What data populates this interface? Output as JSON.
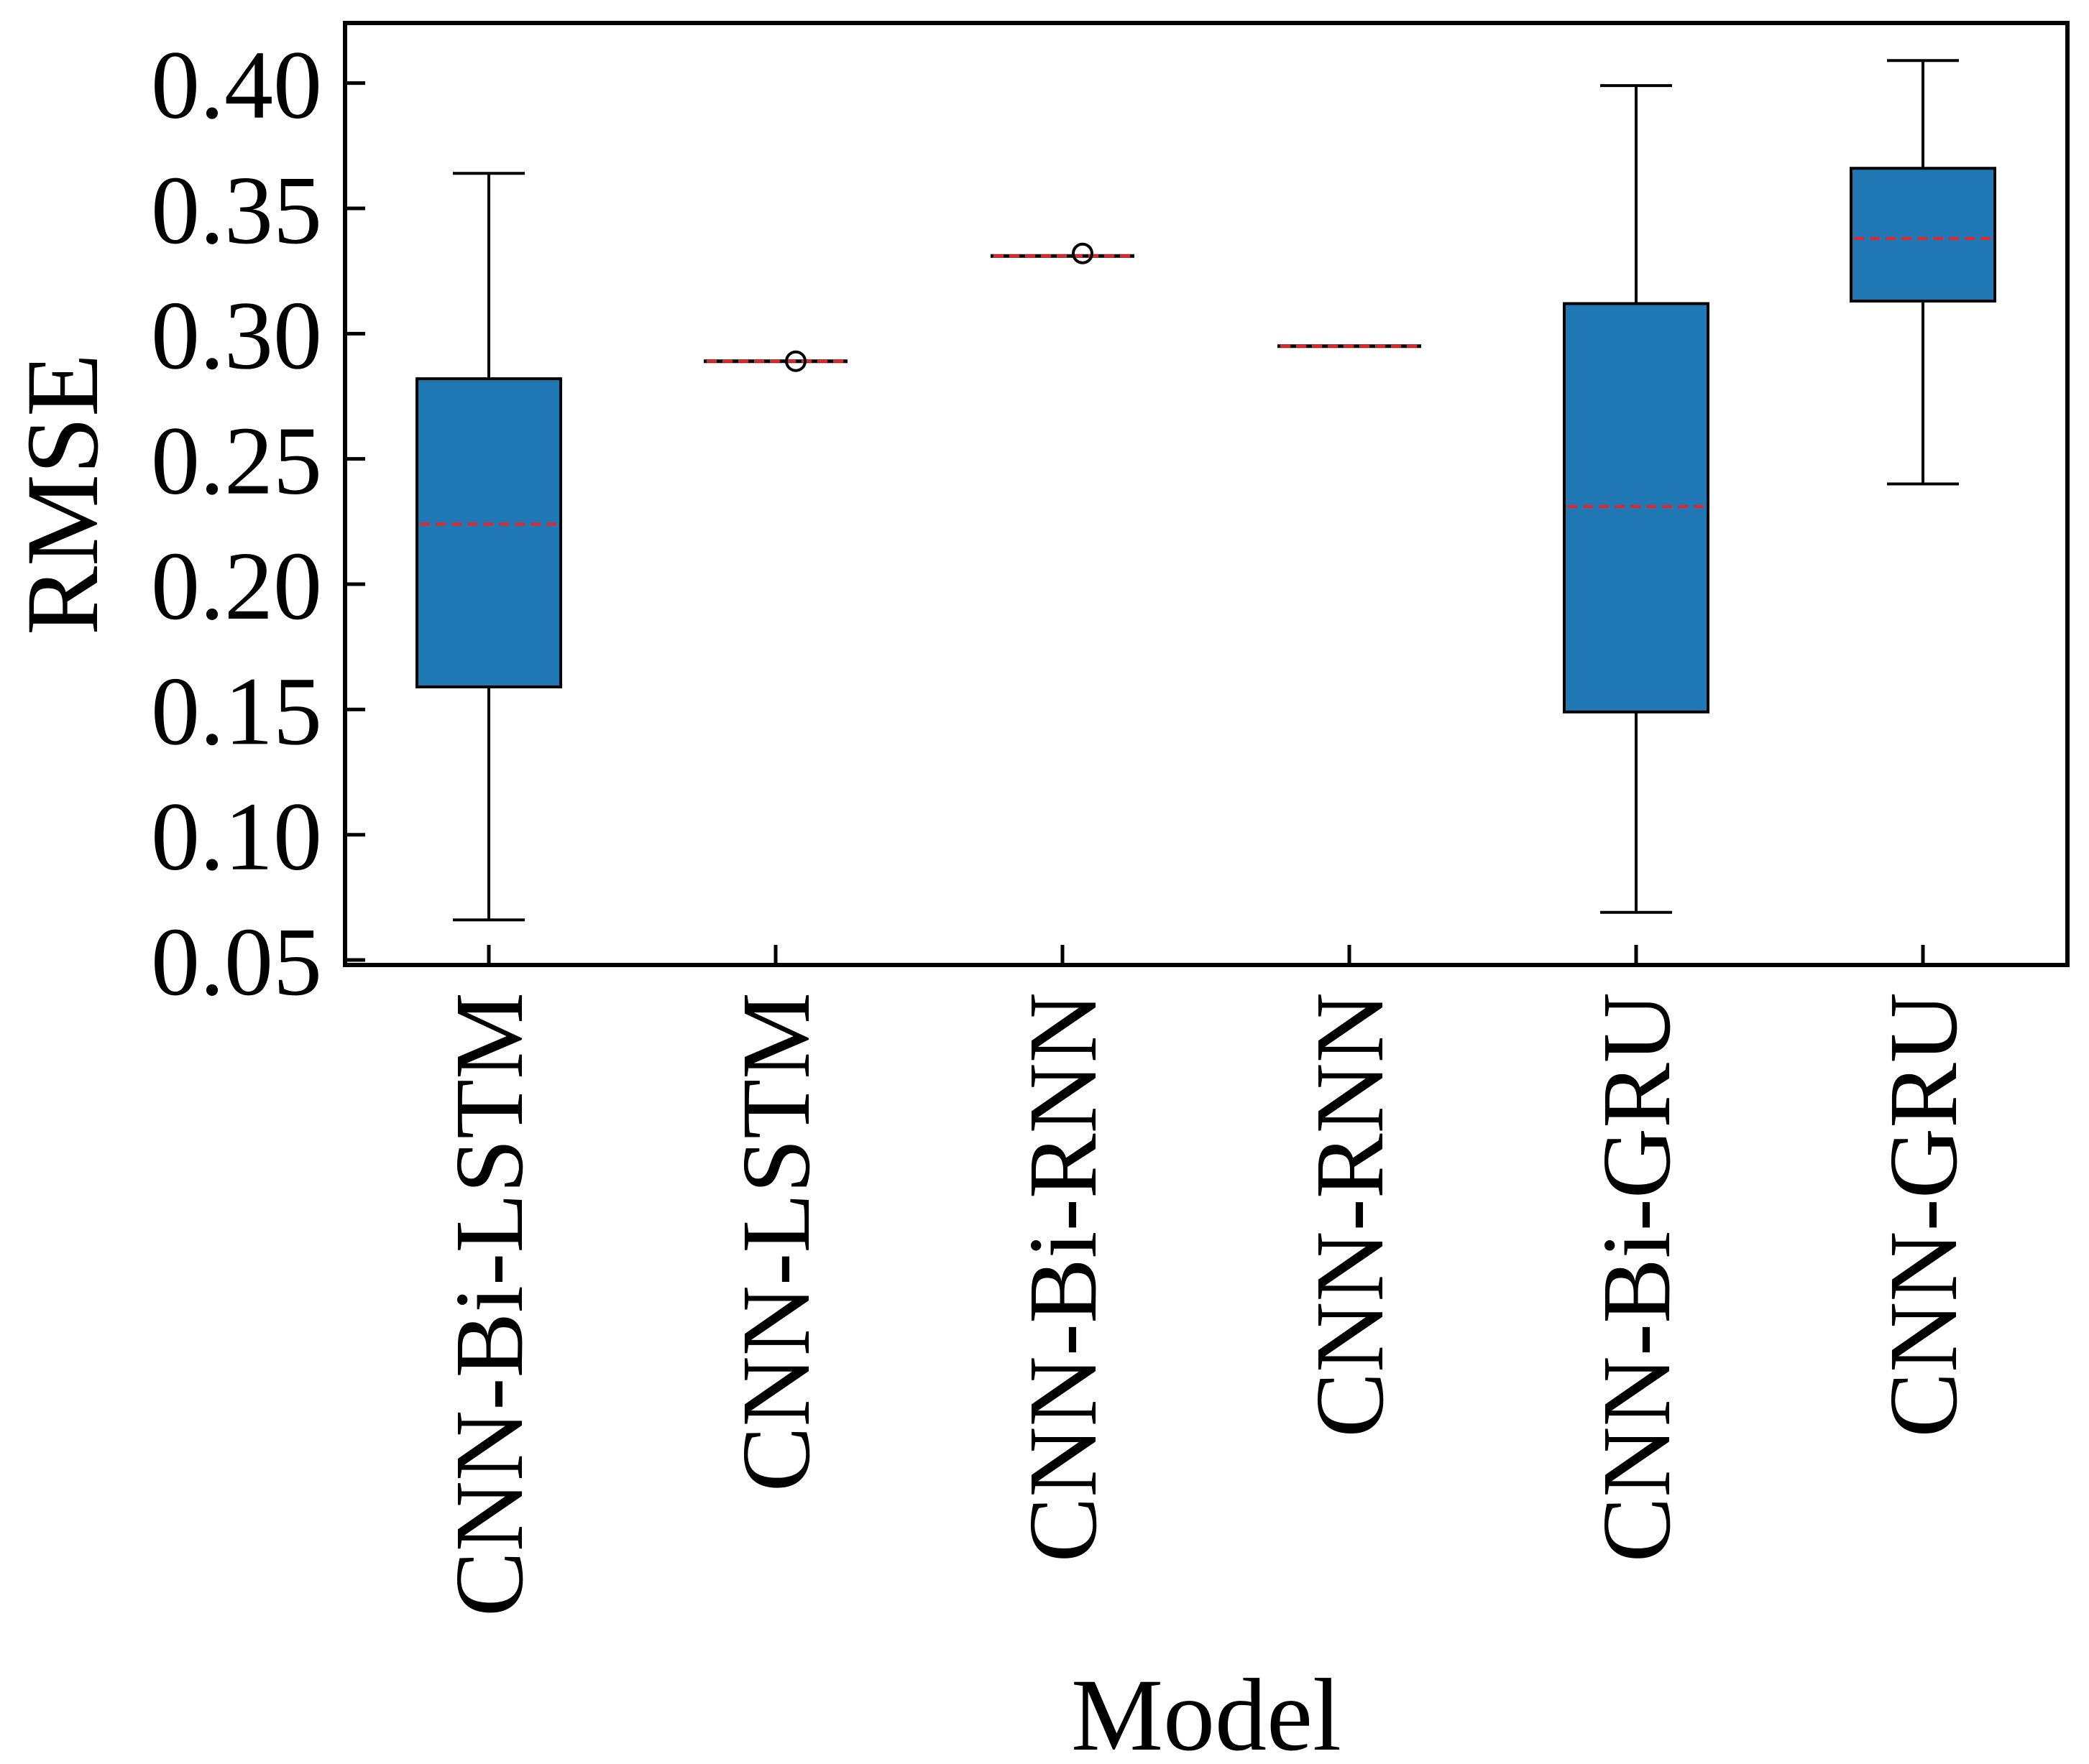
{
  "chart_data": {
    "type": "box",
    "title": "",
    "xlabel": "Model",
    "ylabel": "RMSE",
    "ylim": [
      0.048,
      0.424
    ],
    "yticks": [
      "0.05",
      "0.10",
      "0.15",
      "0.20",
      "0.25",
      "0.30",
      "0.35",
      "0.40"
    ],
    "categories": [
      "CNN-Bi-LSTM",
      "CNN-LSTM",
      "CNN-Bi-RNN",
      "CNN-RNN",
      "CNN-Bi-GRU",
      "CNN-GRU"
    ],
    "boxes": [
      {
        "name": "CNN-Bi-LSTM",
        "whisker_low": 0.066,
        "q1": 0.159,
        "median": 0.224,
        "q3": 0.282,
        "whisker_high": 0.364,
        "outliers": []
      },
      {
        "name": "CNN-LSTM",
        "whisker_low": 0.289,
        "q1": 0.289,
        "median": 0.289,
        "q3": 0.289,
        "whisker_high": 0.289,
        "outliers": [
          0.289
        ]
      },
      {
        "name": "CNN-Bi-RNN",
        "whisker_low": 0.331,
        "q1": 0.331,
        "median": 0.331,
        "q3": 0.331,
        "whisker_high": 0.331,
        "outliers": [
          0.332
        ]
      },
      {
        "name": "CNN-RNN",
        "whisker_low": 0.295,
        "q1": 0.295,
        "median": 0.295,
        "q3": 0.295,
        "whisker_high": 0.295,
        "outliers": []
      },
      {
        "name": "CNN-Bi-GRU",
        "whisker_low": 0.069,
        "q1": 0.149,
        "median": 0.231,
        "q3": 0.312,
        "whisker_high": 0.399,
        "outliers": []
      },
      {
        "name": "CNN-GRU",
        "whisker_low": 0.24,
        "q1": 0.313,
        "median": 0.338,
        "q3": 0.366,
        "whisker_high": 0.409,
        "outliers": []
      }
    ],
    "colors": {
      "box_fill": "#1f77b4",
      "median": "#e8262a",
      "edge": "#000000"
    },
    "grid": false,
    "legend": "none"
  }
}
